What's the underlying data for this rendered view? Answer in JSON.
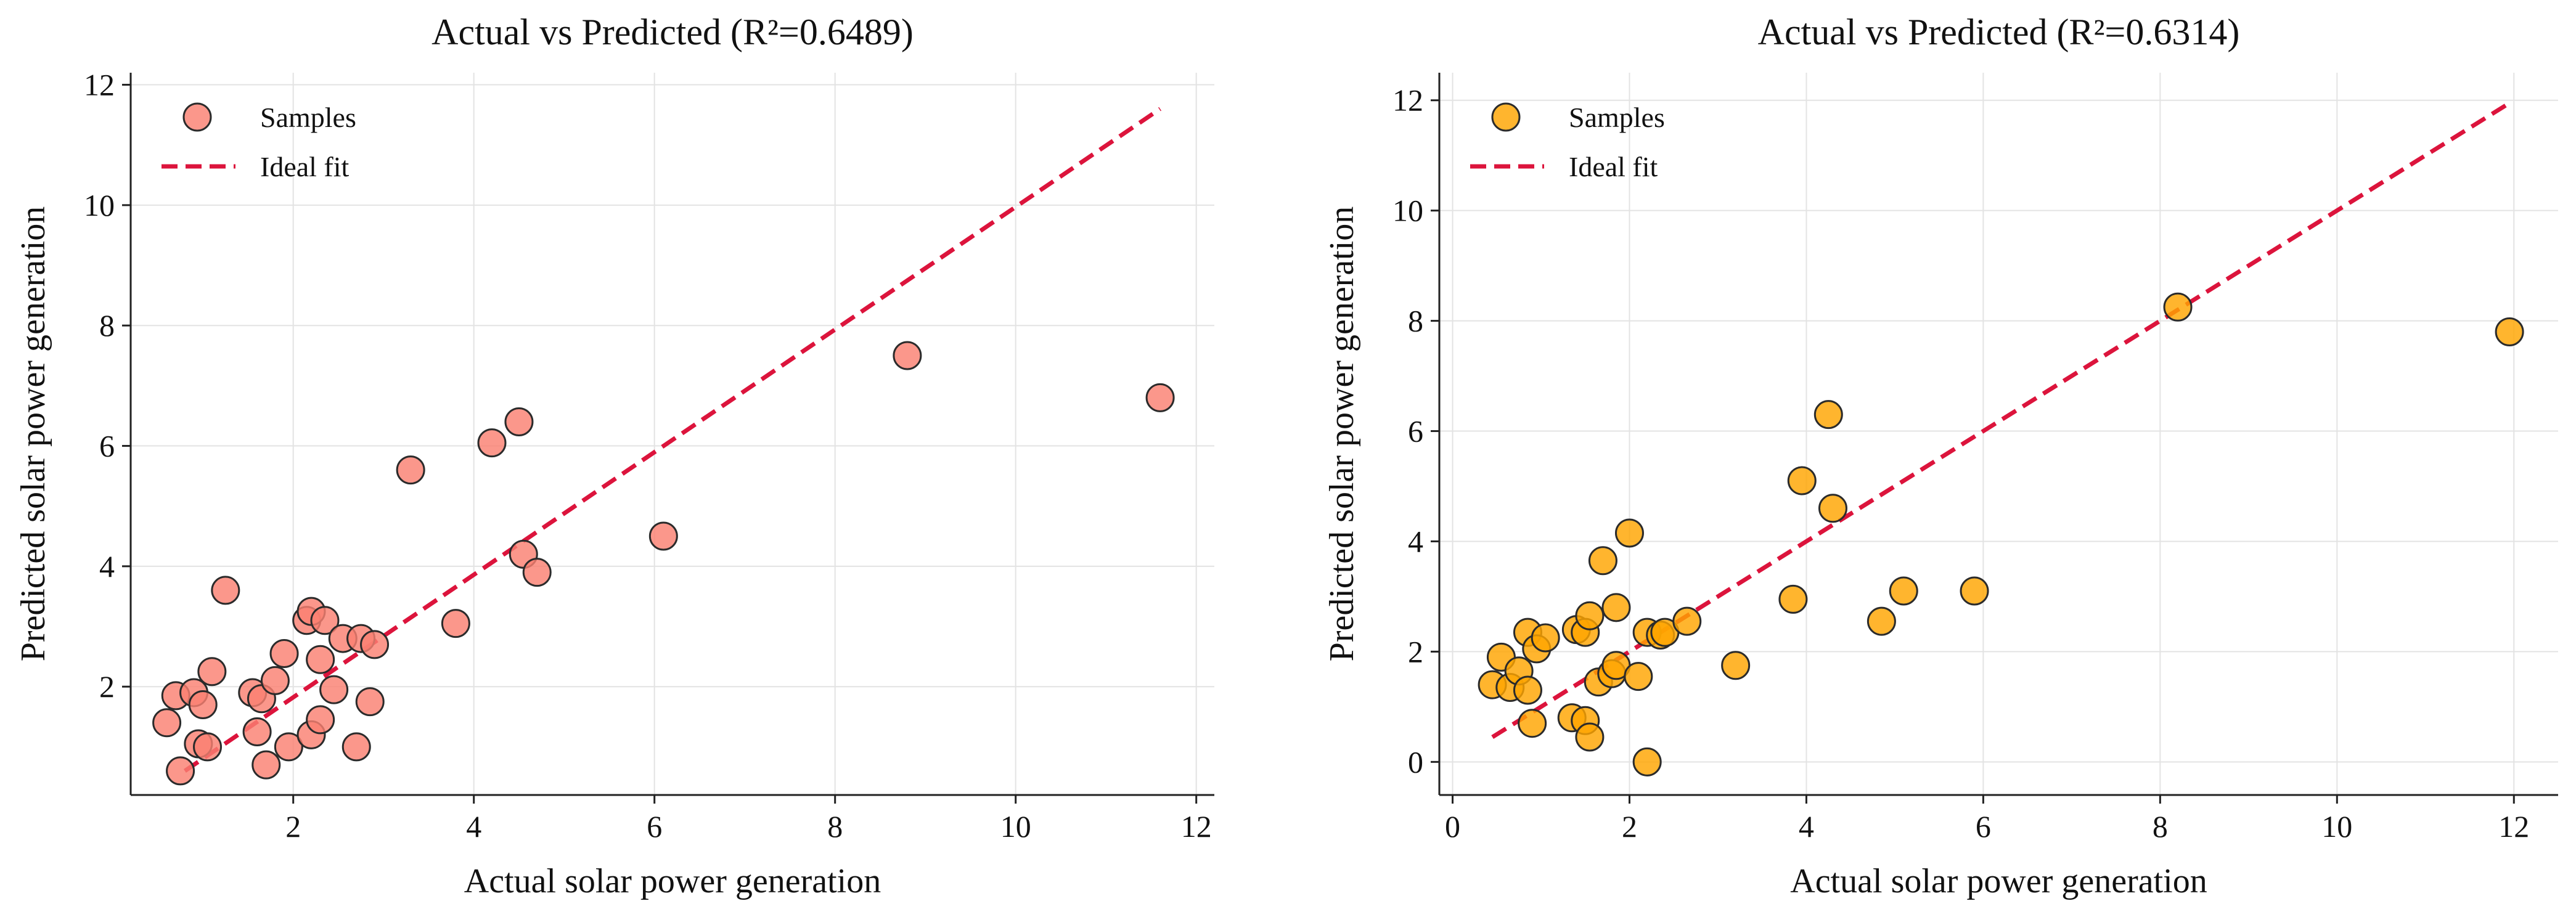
{
  "chart_data": [
    {
      "type": "scatter",
      "title": "Actual vs Predicted (R²=0.6489)",
      "xlabel": "Actual solar power generation",
      "ylabel": "Predicted solar power generation",
      "xlim": [
        0.2,
        12.2
      ],
      "ylim": [
        0.2,
        12.2
      ],
      "xticks": [
        2,
        4,
        6,
        8,
        10,
        12
      ],
      "yticks": [
        2,
        4,
        6,
        8,
        10,
        12
      ],
      "grid": true,
      "legend_position": "top-left",
      "legend": [
        "Samples",
        "Ideal fit"
      ],
      "marker_color": "#fa8072",
      "line_color": "#dc143c",
      "ideal_fit": {
        "x": [
          0.8,
          11.6
        ],
        "y": [
          0.6,
          11.6
        ]
      },
      "points": [
        {
          "x": 0.6,
          "y": 1.4
        },
        {
          "x": 0.7,
          "y": 1.85
        },
        {
          "x": 0.75,
          "y": 0.6
        },
        {
          "x": 0.9,
          "y": 1.9
        },
        {
          "x": 0.95,
          "y": 1.05
        },
        {
          "x": 1.0,
          "y": 1.7
        },
        {
          "x": 1.05,
          "y": 1.0
        },
        {
          "x": 1.1,
          "y": 2.25
        },
        {
          "x": 1.25,
          "y": 3.6
        },
        {
          "x": 1.55,
          "y": 1.9
        },
        {
          "x": 1.6,
          "y": 1.25
        },
        {
          "x": 1.65,
          "y": 1.8
        },
        {
          "x": 1.7,
          "y": 0.7
        },
        {
          "x": 1.8,
          "y": 2.1
        },
        {
          "x": 1.9,
          "y": 2.55
        },
        {
          "x": 1.95,
          "y": 1.0
        },
        {
          "x": 2.15,
          "y": 3.1
        },
        {
          "x": 2.2,
          "y": 3.25
        },
        {
          "x": 2.2,
          "y": 1.2
        },
        {
          "x": 2.3,
          "y": 2.45
        },
        {
          "x": 2.3,
          "y": 1.45
        },
        {
          "x": 2.35,
          "y": 3.1
        },
        {
          "x": 2.45,
          "y": 1.95
        },
        {
          "x": 2.55,
          "y": 2.8
        },
        {
          "x": 2.7,
          "y": 1.0
        },
        {
          "x": 2.75,
          "y": 2.8
        },
        {
          "x": 2.85,
          "y": 1.75
        },
        {
          "x": 2.9,
          "y": 2.7
        },
        {
          "x": 3.3,
          "y": 5.6
        },
        {
          "x": 3.8,
          "y": 3.05
        },
        {
          "x": 4.2,
          "y": 6.05
        },
        {
          "x": 4.5,
          "y": 6.4
        },
        {
          "x": 4.55,
          "y": 4.2
        },
        {
          "x": 4.7,
          "y": 3.9
        },
        {
          "x": 6.1,
          "y": 4.5
        },
        {
          "x": 8.8,
          "y": 7.5
        },
        {
          "x": 11.6,
          "y": 6.8
        }
      ]
    },
    {
      "type": "scatter",
      "title": "Actual vs Predicted (R²=0.6314)",
      "xlabel": "Actual solar power generation",
      "ylabel": "Predicted solar power generation",
      "xlim": [
        -0.15,
        12.5
      ],
      "ylim": [
        -0.6,
        12.5
      ],
      "xticks": [
        0,
        2,
        4,
        6,
        8,
        10,
        12
      ],
      "yticks": [
        0,
        2,
        4,
        6,
        8,
        10,
        12
      ],
      "grid": true,
      "legend_position": "top-left",
      "legend": [
        "Samples",
        "Ideal fit"
      ],
      "marker_color": "#ffa500",
      "line_color": "#dc143c",
      "ideal_fit": {
        "x": [
          0.45,
          11.95
        ],
        "y": [
          0.45,
          11.95
        ]
      },
      "points": [
        {
          "x": 0.45,
          "y": 1.4
        },
        {
          "x": 0.55,
          "y": 1.9
        },
        {
          "x": 0.65,
          "y": 1.35
        },
        {
          "x": 0.75,
          "y": 1.65
        },
        {
          "x": 0.85,
          "y": 2.35
        },
        {
          "x": 0.85,
          "y": 1.3
        },
        {
          "x": 0.9,
          "y": 0.7
        },
        {
          "x": 0.95,
          "y": 2.05
        },
        {
          "x": 1.05,
          "y": 2.25
        },
        {
          "x": 1.35,
          "y": 0.8
        },
        {
          "x": 1.4,
          "y": 2.4
        },
        {
          "x": 1.5,
          "y": 0.75
        },
        {
          "x": 1.5,
          "y": 2.35
        },
        {
          "x": 1.55,
          "y": 2.65
        },
        {
          "x": 1.55,
          "y": 0.45
        },
        {
          "x": 1.65,
          "y": 1.45
        },
        {
          "x": 1.7,
          "y": 3.65
        },
        {
          "x": 1.8,
          "y": 1.6
        },
        {
          "x": 1.85,
          "y": 1.75
        },
        {
          "x": 1.85,
          "y": 2.8
        },
        {
          "x": 2.0,
          "y": 4.15
        },
        {
          "x": 2.1,
          "y": 1.55
        },
        {
          "x": 2.2,
          "y": 2.35
        },
        {
          "x": 2.2,
          "y": 0.0
        },
        {
          "x": 2.35,
          "y": 2.3
        },
        {
          "x": 2.4,
          "y": 2.35
        },
        {
          "x": 2.65,
          "y": 2.55
        },
        {
          "x": 3.2,
          "y": 1.75
        },
        {
          "x": 3.85,
          "y": 2.95
        },
        {
          "x": 3.95,
          "y": 5.1
        },
        {
          "x": 4.25,
          "y": 6.3
        },
        {
          "x": 4.3,
          "y": 4.6
        },
        {
          "x": 4.85,
          "y": 2.55
        },
        {
          "x": 5.1,
          "y": 3.1
        },
        {
          "x": 5.9,
          "y": 3.1
        },
        {
          "x": 8.2,
          "y": 8.25
        },
        {
          "x": 11.95,
          "y": 7.8
        }
      ]
    }
  ]
}
